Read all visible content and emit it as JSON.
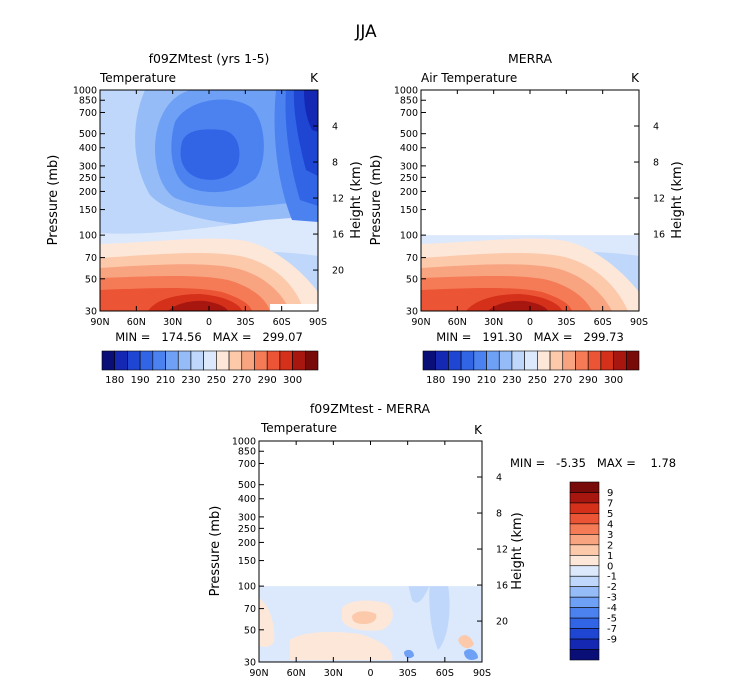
{
  "page": {
    "title": "JJA"
  },
  "palette": {
    "abs": [
      "#0a0f78",
      "#1428b4",
      "#1e46d2",
      "#3264e6",
      "#4b82f0",
      "#6ea0f5",
      "#96bcf8",
      "#bed7fa",
      "#dce9fc",
      "#fde7d9",
      "#fcc9ab",
      "#f9a481",
      "#f57b57",
      "#eb5434",
      "#d4301a",
      "#a81610",
      "#780a0a"
    ],
    "diff": [
      "#0a0f78",
      "#1428b4",
      "#1e46d2",
      "#3264e6",
      "#4b82f0",
      "#6ea0f5",
      "#96bcf8",
      "#bed7fa",
      "#dce9fc",
      "#fde7d9",
      "#fcc9ab",
      "#f9a481",
      "#f57b57",
      "#eb5434",
      "#d4301a",
      "#a81610",
      "#780a0a"
    ]
  },
  "chart_data": [
    {
      "type": "heatmap",
      "title": "f09ZMtest (yrs 1-5)",
      "subtitle": "Temperature",
      "units": "K",
      "ylabel": "Pressure (mb)",
      "ylabel_right": "Height (km)",
      "x_ticks": [
        "90N",
        "60N",
        "30N",
        "0",
        "30S",
        "60S",
        "90S"
      ],
      "y_ticks": [
        "30",
        "50",
        "70",
        "100",
        "150",
        "200",
        "250",
        "300",
        "400",
        "500",
        "700",
        "850",
        "1000"
      ],
      "height_ticks": [
        "20",
        "16",
        "12",
        "8",
        "4"
      ],
      "stats_text": "MIN =   174.56   MAX =   299.07",
      "min": 174.56,
      "max": 299.07,
      "data_top_mb": 30,
      "colorbar_labels": [
        "180",
        "190",
        "210",
        "230",
        "250",
        "270",
        "290",
        "300"
      ],
      "levels": [
        180,
        185,
        190,
        195,
        200,
        205,
        210,
        220,
        230,
        240,
        250,
        260,
        270,
        280,
        290,
        295,
        300
      ]
    },
    {
      "type": "heatmap",
      "title": "MERRA",
      "subtitle": "Air Temperature",
      "units": "K",
      "ylabel": "Pressure (mb)",
      "ylabel_right": "Height (km)",
      "x_ticks": [
        "90N",
        "60N",
        "30N",
        "0",
        "30S",
        "60S",
        "90S"
      ],
      "y_ticks": [
        "30",
        "50",
        "70",
        "100",
        "150",
        "200",
        "250",
        "300",
        "400",
        "500",
        "700",
        "850",
        "1000"
      ],
      "height_ticks": [
        "16",
        "12",
        "8",
        "4"
      ],
      "stats_text": "MIN =   191.30   MAX =   299.73",
      "min": 191.3,
      "max": 299.73,
      "data_top_mb": 100,
      "colorbar_labels": [
        "180",
        "190",
        "210",
        "230",
        "250",
        "270",
        "290",
        "300"
      ],
      "levels": [
        180,
        185,
        190,
        195,
        200,
        205,
        210,
        220,
        230,
        240,
        250,
        260,
        270,
        280,
        290,
        295,
        300
      ]
    },
    {
      "type": "heatmap",
      "title": "f09ZMtest - MERRA",
      "subtitle": "Temperature",
      "units": "K",
      "ylabel": "Pressure (mb)",
      "ylabel_right": "Height (km)",
      "x_ticks": [
        "90N",
        "60N",
        "30N",
        "0",
        "30S",
        "60S",
        "90S"
      ],
      "y_ticks": [
        "30",
        "50",
        "70",
        "100",
        "150",
        "200",
        "250",
        "300",
        "400",
        "500",
        "700",
        "850",
        "1000"
      ],
      "height_ticks": [
        "20",
        "16",
        "12",
        "8",
        "4"
      ],
      "stats_text": "MIN =   -5.35   MAX =    1.78",
      "min": -5.35,
      "max": 1.78,
      "data_top_mb": 100,
      "colorbar_labels": [
        "9",
        "7",
        "5",
        "4",
        "3",
        "2",
        "1",
        "0",
        "-1",
        "-2",
        "-3",
        "-4",
        "-5",
        "-7",
        "-9"
      ],
      "levels": [
        -9,
        -7,
        -5,
        -4,
        -3,
        -2,
        -1,
        0,
        1,
        2,
        3,
        4,
        5,
        7,
        9
      ]
    }
  ]
}
